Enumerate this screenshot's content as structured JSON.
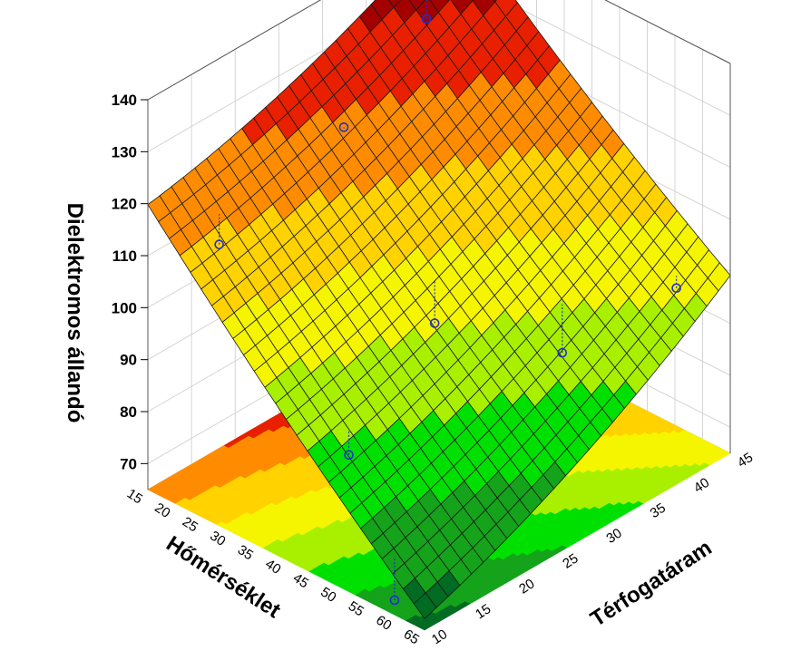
{
  "chart_data": {
    "type": "surface3d",
    "title": "",
    "xlabel": "Hőmérséklet",
    "ylabel": "Térfogatáram",
    "zlabel": "Dielektromos állandó",
    "xlim": [
      15,
      65
    ],
    "ylim": [
      10,
      45
    ],
    "zlim": [
      65,
      140
    ],
    "x_ticks": [
      "15",
      "20",
      "25",
      "30",
      "35",
      "40",
      "45",
      "50",
      "55",
      "60",
      "65"
    ],
    "y_ticks": [
      "10",
      "15",
      "20",
      "25",
      "30",
      "35",
      "40",
      "45"
    ],
    "z_ticks": [
      "70",
      "80",
      "90",
      "100",
      "110",
      "120",
      "130",
      "140"
    ],
    "grid": true,
    "surface_corners": [
      {
        "x": 15,
        "y": 10,
        "z": 118
      },
      {
        "x": 15,
        "y": 45,
        "z": 140
      },
      {
        "x": 65,
        "y": 10,
        "z": 66
      },
      {
        "x": 65,
        "y": 45,
        "z": 98
      }
    ],
    "observed_points": [
      {
        "x": 20,
        "y": 15,
        "z": 110
      },
      {
        "x": 22,
        "y": 28,
        "z": 121
      },
      {
        "x": 18,
        "y": 40,
        "z": 128
      },
      {
        "x": 40,
        "y": 27,
        "z": 94
      },
      {
        "x": 45,
        "y": 14,
        "z": 84
      },
      {
        "x": 52,
        "y": 34,
        "z": 88
      },
      {
        "x": 60,
        "y": 42,
        "z": 97
      },
      {
        "x": 58,
        "y": 11,
        "z": 66
      }
    ],
    "colormap": [
      "#006b22",
      "#14a31a",
      "#00e000",
      "#a8f000",
      "#f5f500",
      "#ffd200",
      "#ff8c00",
      "#e82000",
      "#a40000"
    ]
  }
}
